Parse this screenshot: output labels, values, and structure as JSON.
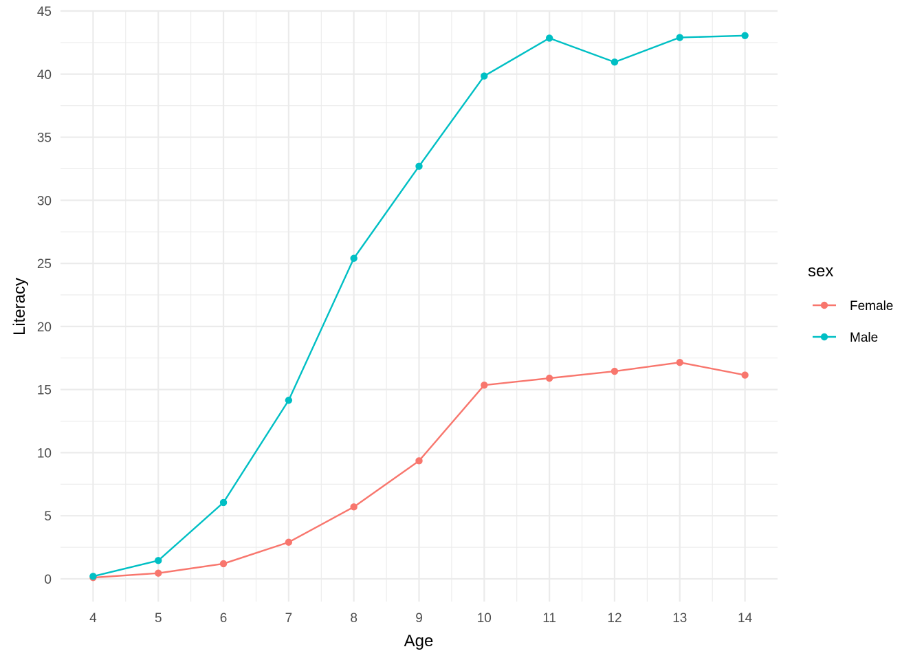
{
  "chart_data": {
    "type": "line",
    "title": "",
    "xlabel": "Age",
    "ylabel": "Literacy",
    "x": [
      4,
      5,
      6,
      7,
      8,
      9,
      10,
      11,
      12,
      13,
      14
    ],
    "xlim": [
      3.5,
      14.5
    ],
    "ylim": [
      -1.8,
      45
    ],
    "x_ticks": [
      "4",
      "5",
      "6",
      "7",
      "8",
      "9",
      "10",
      "11",
      "12",
      "13",
      "14"
    ],
    "y_ticks": [
      "0",
      "5",
      "10",
      "15",
      "20",
      "25",
      "30",
      "35",
      "40",
      "45"
    ],
    "grid": true,
    "legend": {
      "title": "sex",
      "position": "right"
    },
    "series": [
      {
        "name": "Female",
        "color": "#F8766D",
        "values": [
          0.1,
          0.45,
          1.2,
          2.9,
          5.7,
          9.35,
          15.35,
          15.9,
          16.45,
          17.15,
          16.15
        ]
      },
      {
        "name": "Male",
        "color": "#00BFC4",
        "values": [
          0.2,
          1.45,
          6.05,
          14.15,
          25.4,
          32.7,
          39.85,
          42.85,
          40.95,
          42.9,
          43.05
        ]
      }
    ]
  }
}
